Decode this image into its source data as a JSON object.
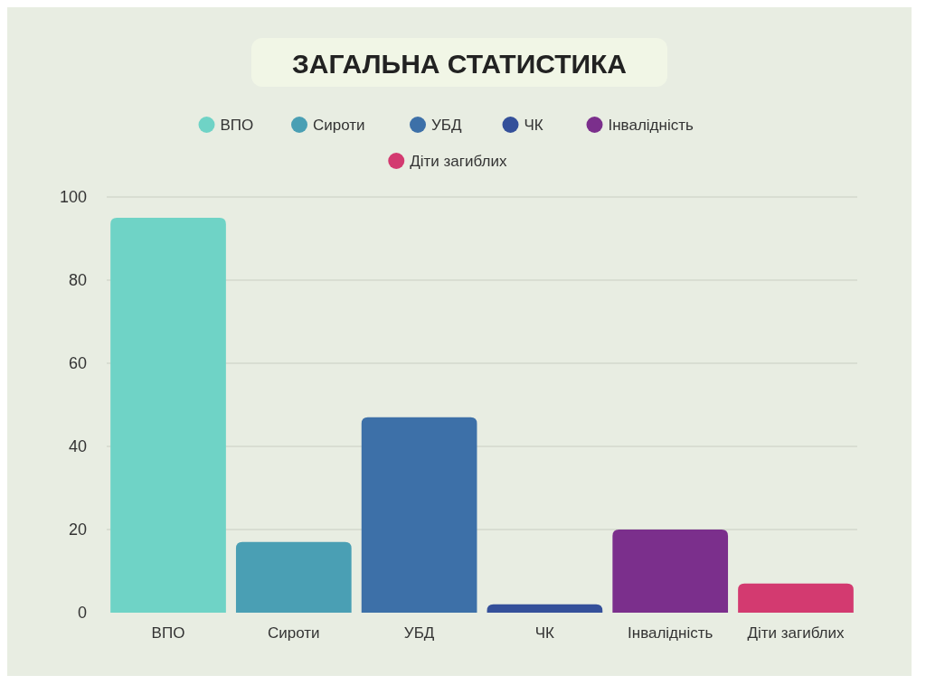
{
  "chart_data": {
    "type": "bar",
    "title": "ЗАГАЛЬНА СТАТИСТИКА",
    "categories": [
      "ВПО",
      "Сироти",
      "УБД",
      "ЧК",
      "Інвалідність",
      "Діти загиблих"
    ],
    "stacked": true,
    "series": [
      {
        "name": "ВПО",
        "color": "#6fd3c6",
        "values": [
          95,
          null,
          null,
          null,
          null,
          null
        ]
      },
      {
        "name": "Сироти",
        "color": "#4a9fb4",
        "values": [
          null,
          17,
          null,
          null,
          null,
          null
        ]
      },
      {
        "name": "УБД",
        "color": "#3d70a8",
        "values": [
          null,
          null,
          47,
          null,
          null,
          null
        ]
      },
      {
        "name": "ЧК",
        "color": "#34509a",
        "values": [
          null,
          null,
          null,
          2,
          null,
          null
        ]
      },
      {
        "name": "Інвалідність",
        "color": "#7b2f8c",
        "values": [
          null,
          null,
          null,
          null,
          20,
          null
        ]
      },
      {
        "name": "Діти загиблих",
        "color": "#d33a70",
        "values": [
          null,
          null,
          null,
          null,
          null,
          7
        ]
      }
    ],
    "ylim": [
      0,
      100
    ],
    "yticks": [
      0,
      20,
      40,
      60,
      80,
      100
    ],
    "grid": "y",
    "legend": "top"
  }
}
